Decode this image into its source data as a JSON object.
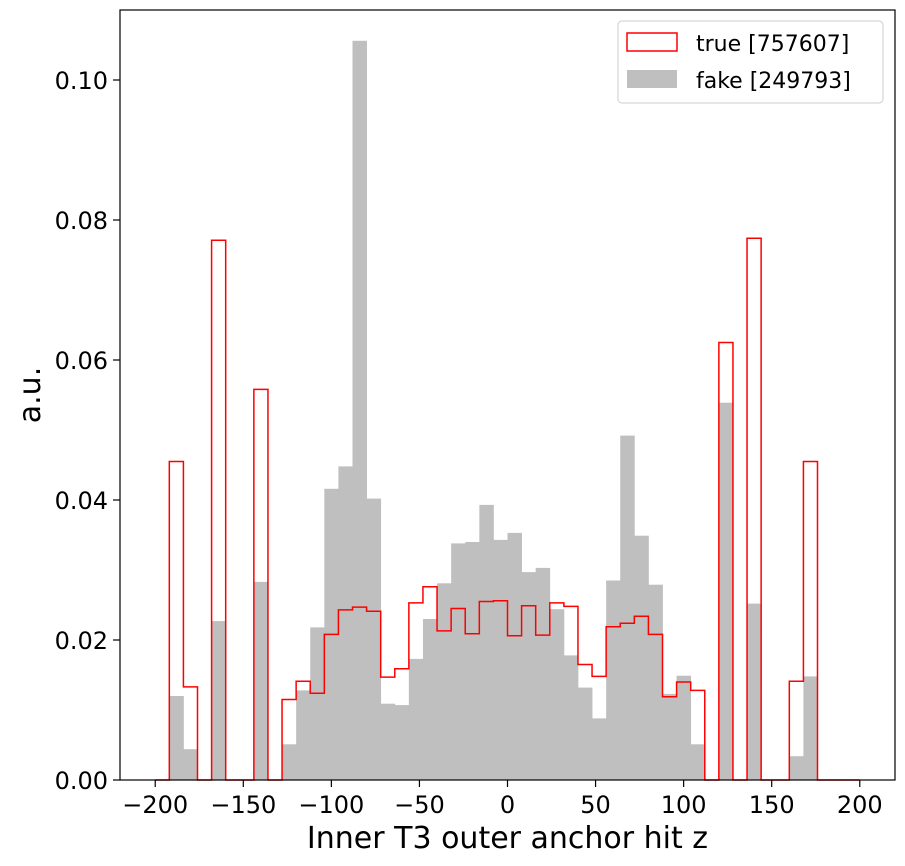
{
  "chart_data": {
    "type": "histogram",
    "xlabel": "Inner T3 outer anchor hit z",
    "ylabel": "a.u.",
    "xlim": [
      -220,
      220
    ],
    "ylim": [
      0,
      0.11
    ],
    "bin_edges_range": [
      -200,
      200
    ],
    "bin_width": 8,
    "x_ticks": [
      -200,
      -150,
      -100,
      -50,
      0,
      50,
      100,
      150,
      200
    ],
    "x_tick_labels": [
      "−200",
      "−150",
      "−100",
      "−50",
      "0",
      "50",
      "100",
      "150",
      "200"
    ],
    "y_ticks": [
      0,
      0.02,
      0.04,
      0.06,
      0.08,
      0.1
    ],
    "y_tick_labels": [
      "0.00",
      "0.02",
      "0.04",
      "0.06",
      "0.08",
      "0.10"
    ],
    "legend_position": "top-right",
    "series": [
      {
        "name": "true [757607]",
        "style": "step",
        "color": "#ff0000",
        "values": [
          0,
          0.0455,
          0.0133,
          0,
          0.0771,
          0,
          0,
          0.0558,
          0,
          0.0115,
          0.0141,
          0.0124,
          0.0208,
          0.0243,
          0.0247,
          0.0241,
          0.0147,
          0.0159,
          0.0253,
          0.0276,
          0.0213,
          0.0245,
          0.0209,
          0.0255,
          0.0256,
          0.0206,
          0.0249,
          0.0207,
          0.0253,
          0.0248,
          0.0165,
          0.0148,
          0.0219,
          0.0224,
          0.0234,
          0.0208,
          0.0119,
          0.014,
          0.0128,
          0,
          0.0625,
          0,
          0.0774,
          0,
          0,
          0.0141,
          0.0455,
          0,
          0,
          0
        ]
      },
      {
        "name": "fake [249793]",
        "style": "filled",
        "color": "#bfbfbf",
        "values": [
          0,
          0.012,
          0.0044,
          0,
          0.0227,
          0,
          0,
          0.0283,
          0,
          0.0051,
          0.0128,
          0.0218,
          0.0416,
          0.0448,
          0.1056,
          0.0402,
          0.0109,
          0.0107,
          0.0173,
          0.023,
          0.0281,
          0.0338,
          0.034,
          0.0393,
          0.0343,
          0.0353,
          0.0297,
          0.0303,
          0.0244,
          0.0178,
          0.0132,
          0.0088,
          0.0285,
          0.0492,
          0.0349,
          0.0279,
          0.0123,
          0.0149,
          0.0051,
          0,
          0.0539,
          0,
          0.0252,
          0,
          0,
          0.0034,
          0.0148,
          0,
          0,
          0
        ]
      }
    ]
  }
}
